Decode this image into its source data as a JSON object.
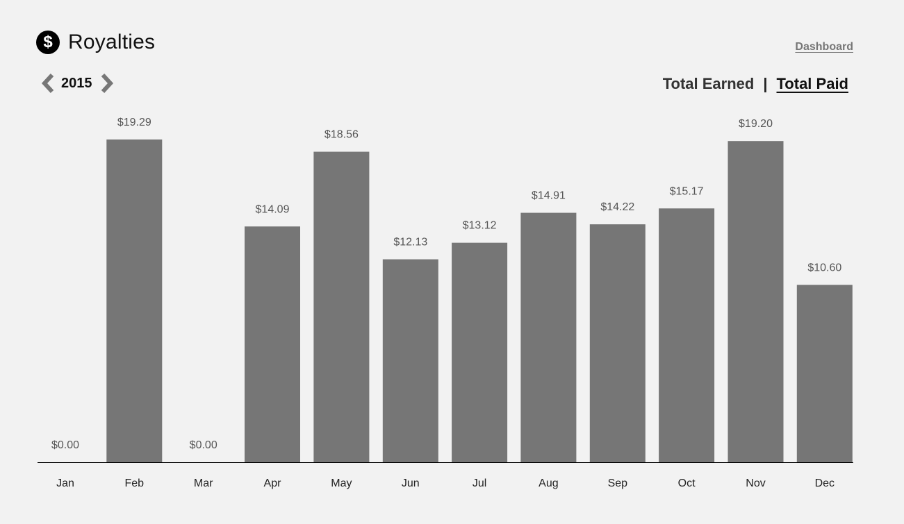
{
  "header": {
    "title": "Royalties",
    "icon": "dollar-circle-icon",
    "icon_glyph": "$",
    "dashboard_link": "Dashboard"
  },
  "year_nav": {
    "year": "2015",
    "prev_icon": "chevron-left-icon",
    "next_icon": "chevron-right-icon"
  },
  "toggle": {
    "earned_label": "Total Earned",
    "separator": "|",
    "paid_label": "Total Paid",
    "active": "Total Paid"
  },
  "colors": {
    "bar": "#767676",
    "background": "#f2f2f2",
    "axis": "#000000"
  },
  "chart_data": {
    "type": "bar",
    "categories": [
      "Jan",
      "Feb",
      "Mar",
      "Apr",
      "May",
      "Jun",
      "Jul",
      "Aug",
      "Sep",
      "Oct",
      "Nov",
      "Dec"
    ],
    "values": [
      0.0,
      19.29,
      0.0,
      14.09,
      18.56,
      12.13,
      13.12,
      14.91,
      14.22,
      15.17,
      19.2,
      10.6
    ],
    "value_labels": [
      "$0.00",
      "$19.29",
      "$0.00",
      "$14.09",
      "$18.56",
      "$12.13",
      "$13.12",
      "$14.91",
      "$14.22",
      "$15.17",
      "$19.20",
      "$10.60"
    ],
    "title": "",
    "xlabel": "",
    "ylabel": "",
    "ylim": [
      0,
      19.29
    ],
    "grid": false,
    "legend": "none"
  }
}
